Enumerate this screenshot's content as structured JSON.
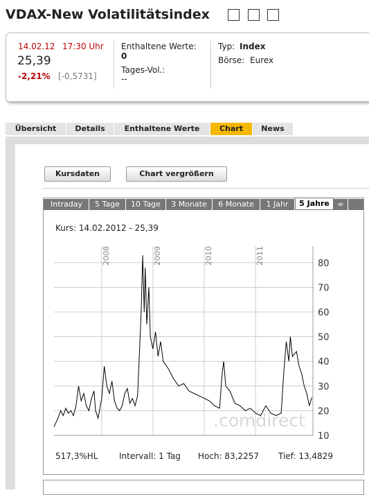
{
  "header": {
    "title": "VDAX-New Volatilitätsindex"
  },
  "quote": {
    "date": "14.02.12",
    "time": "17:30 Uhr",
    "price": "25,39",
    "change": "-2,21%",
    "change_abs": "[-0,5731]",
    "constituents_label": "Enthaltene Werte:",
    "constituents_value": "0",
    "volume_label": "Tages-Vol.:",
    "volume_value": "--",
    "type_label": "Typ:",
    "type_value": "Index",
    "exchange_label": "Börse:",
    "exchange_value": "Eurex"
  },
  "tabs": [
    "Übersicht",
    "Details",
    "Enthaltene Werte",
    "Chart",
    "News"
  ],
  "buttons": [
    "Kursdaten",
    "Chart vergrößern"
  ],
  "periods": [
    "Intraday",
    "5 Tage",
    "10 Tage",
    "3 Monate",
    "6 Monate",
    "1 Jahr",
    "5 Jahre",
    "∞"
  ],
  "caption": "Kurs: 14.02.2012 - 25,39",
  "watermark": ".comdirect",
  "footer": [
    "517,3%HL",
    "Intervall: 1 Tag",
    "Hoch: 83,2257",
    "Tief: 13,4829"
  ],
  "chart_data": {
    "type": "line",
    "color": "#000000",
    "grid": true,
    "xlim": [
      2007.07,
      2012.12
    ],
    "xticks": [
      2008,
      2009,
      2010,
      2011
    ],
    "ylim": [
      10,
      86.7
    ],
    "yticks": [
      10,
      20,
      30,
      40,
      50,
      60,
      70,
      80
    ],
    "x": [
      2007.07,
      2007.15,
      2007.2,
      2007.25,
      2007.3,
      2007.35,
      2007.4,
      2007.45,
      2007.5,
      2007.55,
      2007.6,
      2007.65,
      2007.7,
      2007.75,
      2007.8,
      2007.85,
      2007.88,
      2007.93,
      2008.0,
      2008.05,
      2008.1,
      2008.15,
      2008.2,
      2008.25,
      2008.3,
      2008.35,
      2008.4,
      2008.45,
      2008.5,
      2008.55,
      2008.6,
      2008.65,
      2008.7,
      2008.73,
      2008.77,
      2008.8,
      2008.83,
      2008.85,
      2008.88,
      2008.92,
      2008.95,
      2009.0,
      2009.05,
      2009.1,
      2009.15,
      2009.2,
      2009.3,
      2009.4,
      2009.5,
      2009.6,
      2009.7,
      2009.8,
      2009.9,
      2010.0,
      2010.1,
      2010.2,
      2010.3,
      2010.35,
      2010.38,
      2010.42,
      2010.5,
      2010.6,
      2010.7,
      2010.8,
      2010.9,
      2011.0,
      2011.1,
      2011.2,
      2011.3,
      2011.4,
      2011.5,
      2011.55,
      2011.6,
      2011.65,
      2011.68,
      2011.72,
      2011.8,
      2011.85,
      2011.9,
      2011.95,
      2012.0,
      2012.05,
      2012.1
    ],
    "values": [
      13.5,
      17,
      20,
      18,
      21,
      19,
      20,
      18,
      22,
      30,
      24,
      27,
      22,
      20,
      25,
      28,
      20,
      17,
      25,
      38,
      30,
      27,
      32,
      24,
      21,
      20,
      22,
      27,
      29,
      23,
      25,
      22,
      26,
      40,
      60,
      83,
      60,
      78,
      55,
      70,
      50,
      45,
      52,
      42,
      48,
      40,
      37,
      33,
      30,
      31,
      28,
      27,
      26,
      25,
      24,
      22,
      21,
      35,
      40,
      30,
      28,
      23,
      22,
      20,
      21,
      19,
      18,
      22,
      19,
      18,
      19,
      35,
      48,
      40,
      50,
      42,
      44,
      38,
      35,
      30,
      27,
      22,
      25.4
    ]
  }
}
